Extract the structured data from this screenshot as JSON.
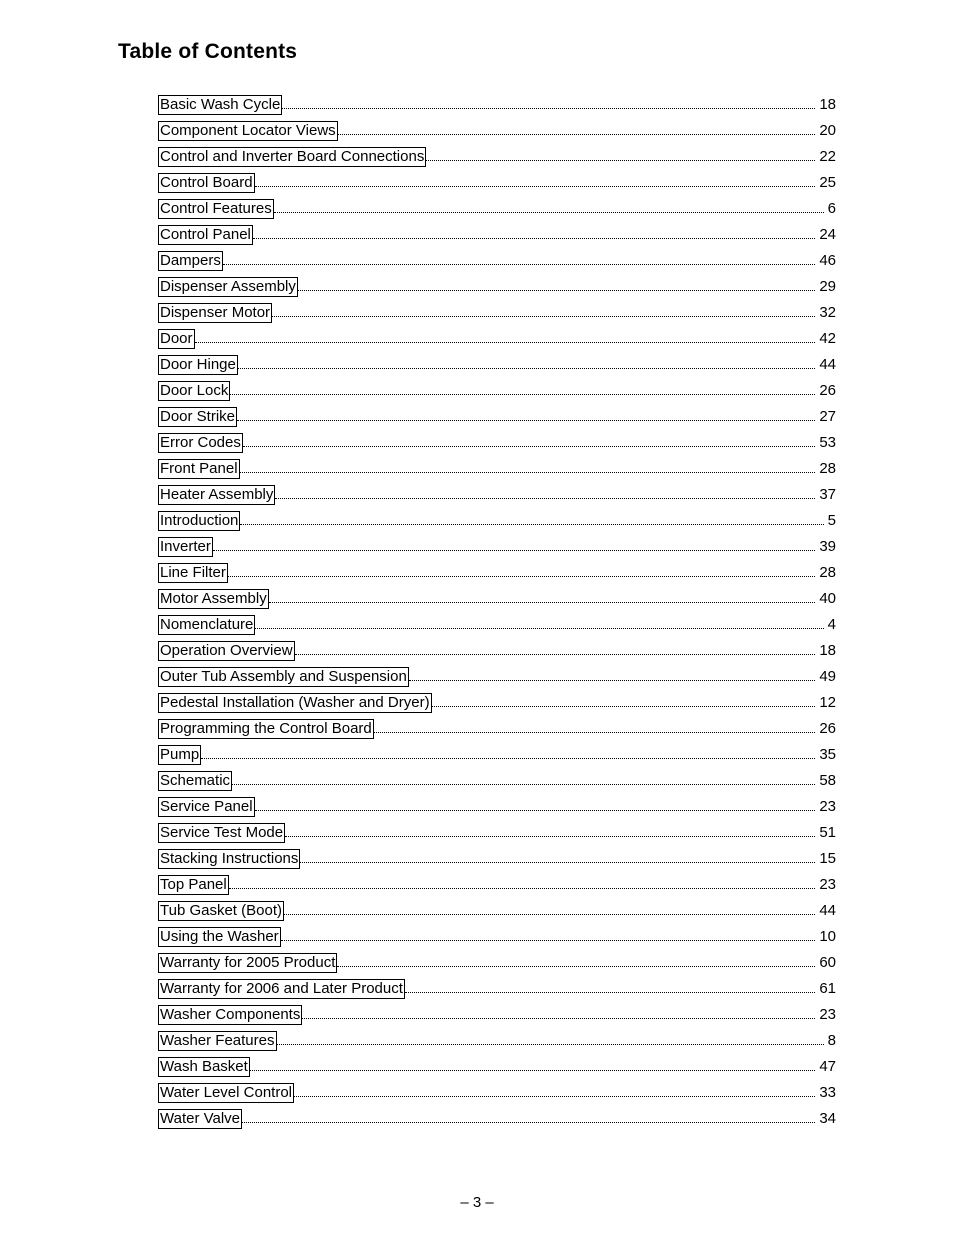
{
  "title": "Table of Contents",
  "pageNumber": "– 3 –",
  "entries": [
    {
      "label": "Basic Wash Cycle",
      "page": "18"
    },
    {
      "label": "Component Locator Views",
      "page": "20"
    },
    {
      "label": "Control and Inverter Board Connections",
      "page": "22"
    },
    {
      "label": "Control Board",
      "page": "25"
    },
    {
      "label": "Control Features",
      "page": " 6"
    },
    {
      "label": "Control Panel ",
      "page": "24"
    },
    {
      "label": "Dampers",
      "page": "46"
    },
    {
      "label": "Dispenser Assembly",
      "page": "29"
    },
    {
      "label": "Dispenser Motor",
      "page": "32"
    },
    {
      "label": "Door ",
      "page": "42"
    },
    {
      "label": "Door Hinge",
      "page": "44"
    },
    {
      "label": "Door Lock",
      "page": "26"
    },
    {
      "label": "Door Strike",
      "page": "27"
    },
    {
      "label": "Error Codes",
      "page": "53"
    },
    {
      "label": "Front Panel",
      "page": "28"
    },
    {
      "label": "Heater Assembly",
      "page": "37"
    },
    {
      "label": "Introduction",
      "page": " 5"
    },
    {
      "label": "Inverter",
      "page": "39"
    },
    {
      "label": "Line Filter",
      "page": "28"
    },
    {
      "label": "Motor Assembly",
      "page": "40"
    },
    {
      "label": "Nomenclature",
      "page": " 4"
    },
    {
      "label": "Operation Overview",
      "page": "18"
    },
    {
      "label": "Outer Tub Assembly and Suspension ",
      "page": "49"
    },
    {
      "label": "Pedestal Installation (Washer and Dryer)",
      "page": "12"
    },
    {
      "label": "Programming the Control Board",
      "page": "26"
    },
    {
      "label": "Pump",
      "page": "35"
    },
    {
      "label": "Schematic",
      "page": "58"
    },
    {
      "label": "Service Panel",
      "page": "23"
    },
    {
      "label": "Service Test Mode",
      "page": "51"
    },
    {
      "label": "Stacking Instructions",
      "page": "15"
    },
    {
      "label": "Top Panel",
      "page": "23"
    },
    {
      "label": "Tub Gasket (Boot)",
      "page": "44"
    },
    {
      "label": "Using the Washer",
      "page": "10"
    },
    {
      "label": "Warranty for 2005 Product",
      "page": "60"
    },
    {
      "label": "Warranty for 2006 and Later Product",
      "page": "61"
    },
    {
      "label": "Washer Components",
      "page": "23"
    },
    {
      "label": "Washer Features",
      "page": " 8"
    },
    {
      "label": "Wash Basket",
      "page": "47"
    },
    {
      "label": "Water Level Control",
      "page": "33"
    },
    {
      "label": "Water Valve",
      "page": "34"
    }
  ]
}
